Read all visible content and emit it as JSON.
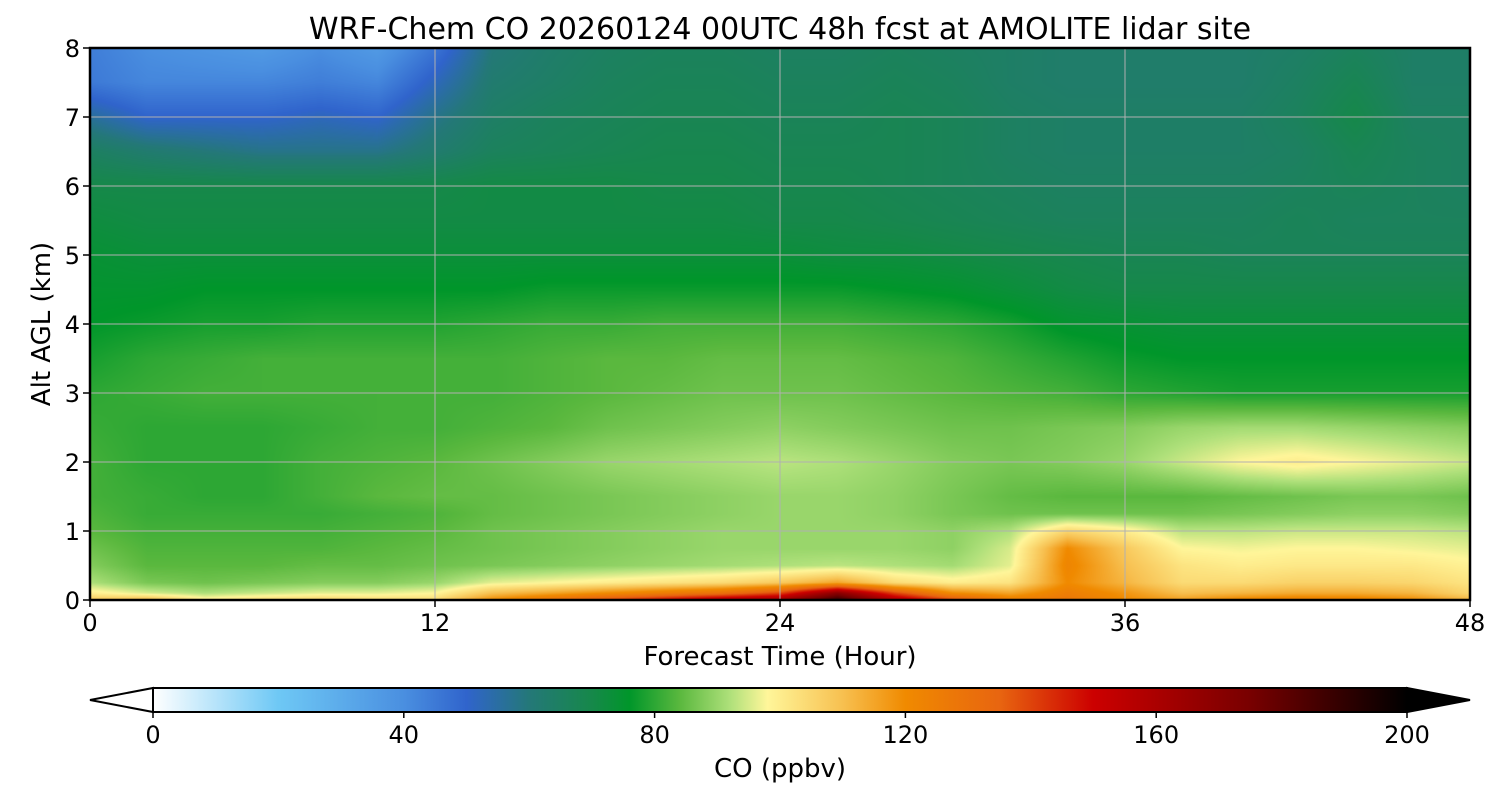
{
  "chart_data": {
    "type": "heatmap",
    "title": "WRF-Chem CO  20260124 00UTC 48h fcst at AMOLITE lidar site",
    "xlabel": "Forecast Time (Hour)",
    "ylabel": "Alt AGL (km)",
    "xlim": [
      0,
      48
    ],
    "ylim": [
      0,
      8
    ],
    "x_ticks": [
      0,
      12,
      24,
      36,
      48
    ],
    "y_ticks": [
      0,
      1,
      2,
      3,
      4,
      5,
      6,
      7,
      8
    ],
    "grid": true,
    "colorbar": {
      "label": "CO  (ppbv)",
      "range": [
        0,
        200
      ],
      "ticks": [
        0,
        40,
        80,
        120,
        160,
        200
      ],
      "extend": "both",
      "stops": [
        {
          "v": 0,
          "c": "#ffffff"
        },
        {
          "v": 20,
          "c": "#6ec8f5"
        },
        {
          "v": 40,
          "c": "#4a8fe0"
        },
        {
          "v": 50,
          "c": "#3064cc"
        },
        {
          "v": 60,
          "c": "#247878"
        },
        {
          "v": 70,
          "c": "#16884a"
        },
        {
          "v": 76,
          "c": "#00962a"
        },
        {
          "v": 84,
          "c": "#5ab83e"
        },
        {
          "v": 92,
          "c": "#aee07a"
        },
        {
          "v": 98,
          "c": "#fff69a"
        },
        {
          "v": 110,
          "c": "#f7c050"
        },
        {
          "v": 120,
          "c": "#f08a00"
        },
        {
          "v": 135,
          "c": "#e86510"
        },
        {
          "v": 150,
          "c": "#cc0000"
        },
        {
          "v": 175,
          "c": "#780000"
        },
        {
          "v": 200,
          "c": "#000000"
        }
      ]
    },
    "x": [
      0,
      2,
      4,
      6,
      8,
      10,
      12,
      14,
      16,
      18,
      20,
      22,
      24,
      26,
      28,
      30,
      32,
      34,
      36,
      38,
      40,
      42,
      44,
      46,
      48
    ],
    "y": [
      0,
      0.1,
      0.25,
      0.5,
      0.75,
      1.0,
      1.25,
      1.5,
      2.0,
      2.5,
      3.0,
      3.5,
      4.0,
      4.5,
      5.0,
      5.5,
      6.0,
      6.5,
      7.0,
      7.5,
      8.0
    ],
    "z": [
      [
        108,
        112,
        100,
        104,
        106,
        104,
        104,
        120,
        130,
        140,
        150,
        160,
        165,
        190,
        160,
        140,
        125,
        128,
        120,
        116,
        122,
        125,
        124,
        120,
        112
      ],
      [
        100,
        95,
        92,
        94,
        96,
        96,
        98,
        110,
        115,
        120,
        125,
        130,
        140,
        170,
        140,
        120,
        115,
        125,
        118,
        110,
        112,
        114,
        114,
        112,
        105
      ],
      [
        92,
        87,
        86,
        87,
        88,
        88,
        90,
        96,
        98,
        100,
        102,
        104,
        108,
        115,
        104,
        100,
        102,
        120,
        112,
        104,
        104,
        106,
        106,
        105,
        102
      ],
      [
        88,
        84,
        84,
        84,
        85,
        85,
        86,
        87,
        88,
        89,
        90,
        91,
        92,
        93,
        92,
        91,
        96,
        122,
        110,
        102,
        100,
        101,
        101,
        101,
        99
      ],
      [
        86,
        83,
        83,
        83,
        83,
        84,
        85,
        86,
        87,
        88,
        89,
        90,
        90,
        90,
        90,
        89,
        95,
        120,
        108,
        98,
        97,
        98,
        98,
        97,
        96
      ],
      [
        84,
        82,
        82,
        82,
        82,
        83,
        84,
        86,
        87,
        88,
        89,
        90,
        90,
        90,
        90,
        89,
        92,
        105,
        100,
        93,
        93,
        94,
        94,
        94,
        93
      ],
      [
        83,
        81,
        81,
        81,
        81,
        82,
        83,
        85,
        86,
        87,
        88,
        89,
        90,
        90,
        89,
        87,
        86,
        86,
        86,
        86,
        87,
        88,
        89,
        89,
        88
      ],
      [
        82,
        81,
        80,
        80,
        82,
        84,
        85,
        85,
        86,
        87,
        88,
        89,
        90,
        90,
        89,
        87,
        85,
        84,
        84,
        84,
        85,
        86,
        87,
        87,
        86
      ],
      [
        82,
        80,
        80,
        80,
        82,
        83,
        84,
        86,
        88,
        90,
        91,
        92,
        93,
        92,
        90,
        88,
        87,
        88,
        90,
        94,
        98,
        100,
        98,
        96,
        94
      ],
      [
        81,
        80,
        80,
        80,
        81,
        82,
        82,
        83,
        84,
        86,
        87,
        88,
        89,
        88,
        87,
        86,
        86,
        87,
        88,
        90,
        91,
        91,
        90,
        89,
        88
      ],
      [
        80,
        81,
        82,
        82,
        82,
        82,
        82,
        82,
        83,
        84,
        85,
        86,
        86,
        86,
        85,
        84,
        83,
        82,
        80,
        79,
        78,
        78,
        78,
        78,
        78
      ],
      [
        78,
        80,
        81,
        82,
        82,
        82,
        82,
        82,
        83,
        84,
        84,
        85,
        85,
        85,
        84,
        83,
        81,
        79,
        77,
        76,
        76,
        76,
        76,
        76,
        76
      ],
      [
        76,
        77,
        78,
        78,
        79,
        79,
        79,
        80,
        81,
        81,
        82,
        82,
        82,
        82,
        81,
        80,
        78,
        75,
        74,
        73,
        73,
        73,
        73,
        73,
        73
      ],
      [
        75,
        75,
        76,
        76,
        76,
        76,
        76,
        76,
        77,
        77,
        77,
        77,
        77,
        77,
        76,
        75,
        73,
        71,
        70,
        70,
        70,
        70,
        70,
        70,
        70
      ],
      [
        74,
        73,
        73,
        73,
        73,
        73,
        73,
        73,
        73,
        73,
        73,
        73,
        73,
        72,
        72,
        71,
        70,
        69,
        68,
        68,
        67,
        67,
        67,
        67,
        67
      ],
      [
        72,
        71,
        71,
        71,
        71,
        71,
        71,
        71,
        71,
        71,
        71,
        71,
        70,
        70,
        69,
        68,
        67,
        66,
        66,
        66,
        66,
        67,
        66,
        66,
        66
      ],
      [
        70,
        70,
        70,
        70,
        70,
        70,
        70,
        71,
        71,
        71,
        70,
        70,
        69,
        69,
        68,
        67,
        66,
        65,
        65,
        65,
        65,
        66,
        67,
        66,
        65
      ],
      [
        65,
        62,
        60,
        58,
        58,
        58,
        62,
        66,
        67,
        68,
        69,
        69,
        68,
        68,
        68,
        67,
        65,
        64,
        64,
        64,
        64,
        65,
        68,
        66,
        65
      ],
      [
        56,
        50,
        50,
        50,
        52,
        50,
        58,
        64,
        66,
        67,
        68,
        68,
        67,
        67,
        68,
        67,
        65,
        64,
        64,
        64,
        64,
        66,
        70,
        65,
        65
      ],
      [
        45,
        42,
        42,
        42,
        44,
        42,
        52,
        62,
        64,
        66,
        67,
        67,
        66,
        66,
        67,
        66,
        64,
        63,
        63,
        63,
        63,
        65,
        68,
        64,
        64
      ],
      [
        44,
        40,
        38,
        36,
        40,
        36,
        46,
        60,
        63,
        65,
        66,
        66,
        65,
        65,
        66,
        65,
        64,
        63,
        63,
        63,
        63,
        64,
        66,
        64,
        64
      ]
    ]
  }
}
